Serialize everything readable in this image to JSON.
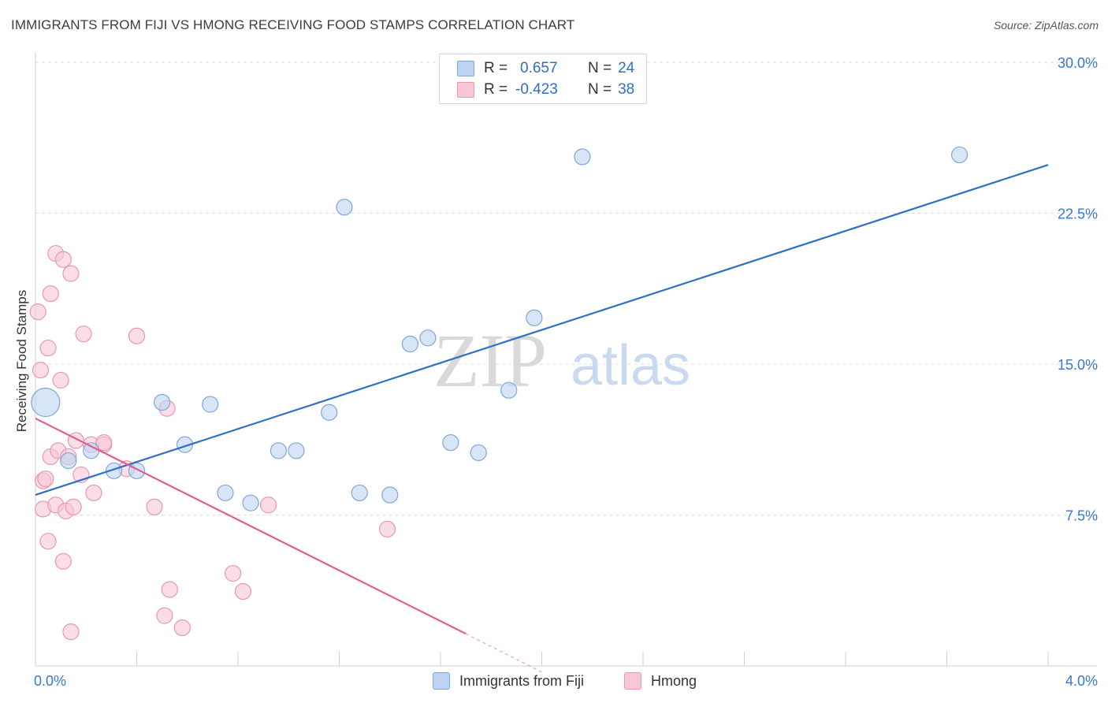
{
  "header": {
    "title": "IMMIGRANTS FROM FIJI VS HMONG RECEIVING FOOD STAMPS CORRELATION CHART",
    "source": "Source: ZipAtlas.com"
  },
  "legend": {
    "rows": [
      {
        "r_label": "R =",
        "r_value": "0.657",
        "n_label": "N =",
        "n_value": "24"
      },
      {
        "r_label": "R =",
        "r_value": "-0.423",
        "n_label": "N =",
        "n_value": "38"
      }
    ]
  },
  "watermark": {
    "zip": "ZIP",
    "atlas": "atlas"
  },
  "colors": {
    "fiji_fill": "#bcd3f2",
    "fiji_stroke": "#7fa6d8",
    "fiji_line": "#2f6fc6",
    "hmong_fill": "#f7c7d6",
    "hmong_stroke": "#e897b2",
    "hmong_line": "#e0608f"
  },
  "chart_data": {
    "type": "scatter",
    "title": "IMMIGRANTS FROM FIJI VS HMONG RECEIVING FOOD STAMPS CORRELATION CHART",
    "xlabel": "",
    "ylabel": "Receiving Food Stamps",
    "xlim": [
      0,
      4.0
    ],
    "ylim": [
      0,
      30.0
    ],
    "x_tick_labels": [
      "0.0%",
      "4.0%"
    ],
    "y_ticks": [
      7.5,
      15.0,
      22.5,
      30.0
    ],
    "y_tick_labels": [
      "7.5%",
      "15.0%",
      "22.5%",
      "30.0%"
    ],
    "grid": true,
    "legend_position": "top-center",
    "series": [
      {
        "name": "Immigrants from Fiji",
        "r": 0.657,
        "n": 24,
        "points": [
          [
            0.04,
            13.1,
            18
          ],
          [
            0.13,
            10.2,
            10
          ],
          [
            0.22,
            10.7,
            10
          ],
          [
            0.31,
            9.7,
            10
          ],
          [
            0.4,
            9.7,
            10
          ],
          [
            0.5,
            13.1,
            10
          ],
          [
            0.59,
            11.0,
            10
          ],
          [
            0.69,
            13.0,
            10
          ],
          [
            0.75,
            8.6,
            10
          ],
          [
            0.85,
            8.1,
            10
          ],
          [
            0.96,
            10.7,
            10
          ],
          [
            1.03,
            10.7,
            10
          ],
          [
            1.16,
            12.6,
            10
          ],
          [
            1.22,
            22.8,
            10
          ],
          [
            1.28,
            8.6,
            10
          ],
          [
            1.4,
            8.5,
            10
          ],
          [
            1.48,
            16.0,
            10
          ],
          [
            1.55,
            16.3,
            10
          ],
          [
            1.64,
            11.1,
            10
          ],
          [
            1.75,
            10.6,
            10
          ],
          [
            1.87,
            13.7,
            10
          ],
          [
            1.97,
            17.3,
            10
          ],
          [
            2.16,
            25.3,
            10
          ],
          [
            3.65,
            25.4,
            10
          ]
        ],
        "trend": {
          "x": [
            0.0,
            4.0
          ],
          "y": [
            8.5,
            24.9
          ]
        }
      },
      {
        "name": "Hmong",
        "r": -0.423,
        "n": 38,
        "points": [
          [
            0.01,
            17.6,
            10
          ],
          [
            0.02,
            14.7,
            10
          ],
          [
            0.03,
            9.2,
            10
          ],
          [
            0.03,
            7.8,
            10
          ],
          [
            0.04,
            9.3,
            10
          ],
          [
            0.05,
            15.8,
            10
          ],
          [
            0.05,
            6.2,
            10
          ],
          [
            0.06,
            18.5,
            10
          ],
          [
            0.06,
            10.4,
            10
          ],
          [
            0.08,
            20.5,
            10
          ],
          [
            0.08,
            8.0,
            10
          ],
          [
            0.09,
            10.7,
            10
          ],
          [
            0.1,
            14.2,
            10
          ],
          [
            0.11,
            20.2,
            10
          ],
          [
            0.11,
            5.2,
            10
          ],
          [
            0.12,
            7.7,
            10
          ],
          [
            0.13,
            10.4,
            10
          ],
          [
            0.14,
            1.7,
            10
          ],
          [
            0.14,
            19.5,
            10
          ],
          [
            0.15,
            7.9,
            10
          ],
          [
            0.16,
            11.2,
            10
          ],
          [
            0.18,
            9.5,
            10
          ],
          [
            0.19,
            16.5,
            10
          ],
          [
            0.22,
            11.0,
            10
          ],
          [
            0.23,
            8.6,
            10
          ],
          [
            0.27,
            11.0,
            10
          ],
          [
            0.27,
            11.1,
            10
          ],
          [
            0.36,
            9.8,
            10
          ],
          [
            0.4,
            16.4,
            10
          ],
          [
            0.47,
            7.9,
            10
          ],
          [
            0.51,
            2.5,
            10
          ],
          [
            0.52,
            12.8,
            10
          ],
          [
            0.53,
            3.8,
            10
          ],
          [
            0.58,
            1.9,
            10
          ],
          [
            0.78,
            4.6,
            10
          ],
          [
            0.82,
            3.7,
            10
          ],
          [
            0.92,
            8.0,
            10
          ],
          [
            1.39,
            6.8,
            10
          ]
        ],
        "trend": {
          "x": [
            0.0,
            1.7
          ],
          "y": [
            12.3,
            1.6
          ]
        },
        "trend_dashed": {
          "x": [
            1.7,
            2.0
          ],
          "y": [
            1.6,
            -0.3
          ]
        }
      }
    ]
  },
  "bottom_legend": {
    "items": [
      {
        "label": "Immigrants from Fiji"
      },
      {
        "label": "Hmong"
      }
    ]
  }
}
